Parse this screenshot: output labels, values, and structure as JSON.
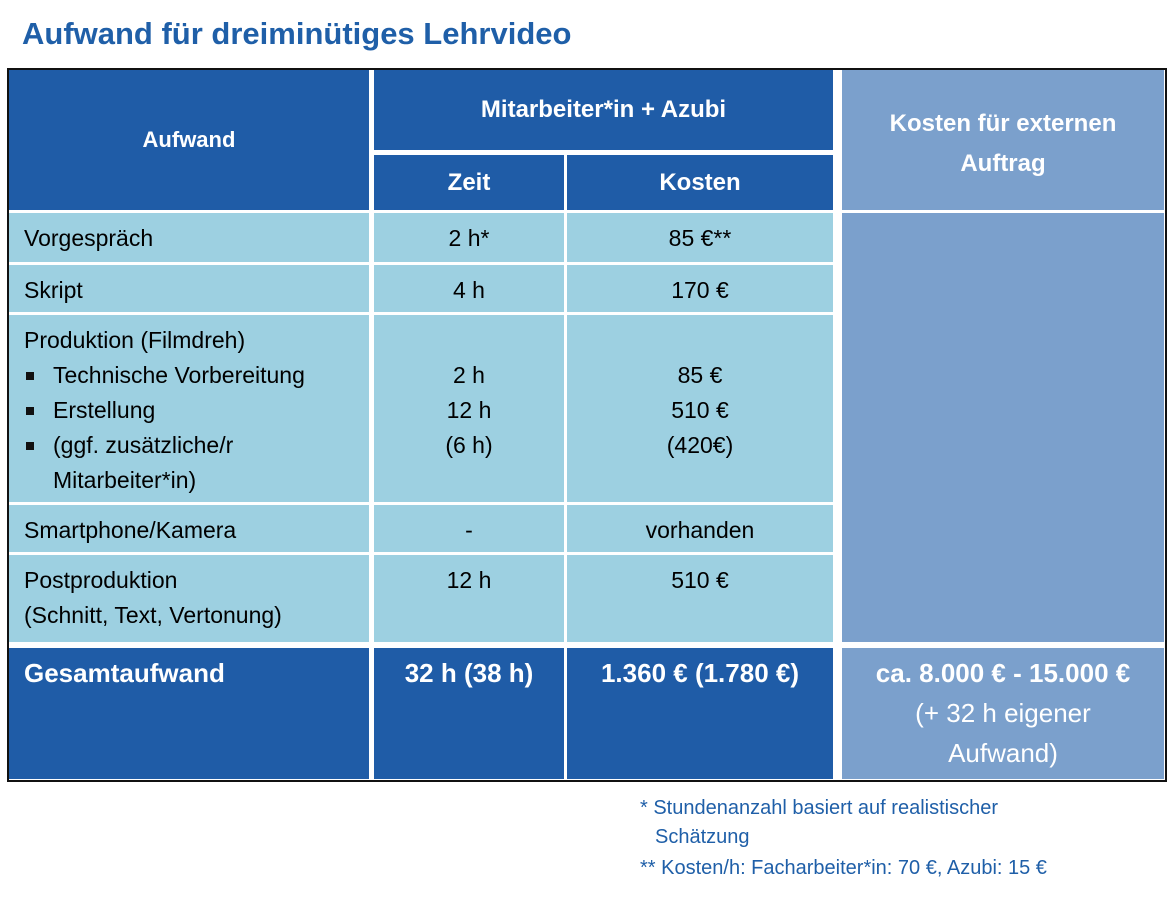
{
  "title": "Aufwand für dreiminütiges Lehrvideo",
  "table": {
    "header": {
      "aufwand": "Aufwand",
      "group": "Mitarbeiter*in + Azubi",
      "zeit": "Zeit",
      "kosten": "Kosten",
      "extern": [
        "Kosten für externen",
        "Auftrag"
      ]
    },
    "rows": [
      {
        "label": [
          "Vorgespräch"
        ],
        "zeit": [
          "2 h*"
        ],
        "kosten": [
          "85 €**"
        ]
      },
      {
        "label": [
          "Skript"
        ],
        "zeit": [
          "4 h"
        ],
        "kosten": [
          "170 €"
        ]
      },
      {
        "label": [
          "Produktion (Filmdreh)"
        ],
        "items": [
          [
            "Technische Vorbereitung"
          ],
          [
            "Erstellung"
          ],
          [
            "(ggf. zusätzliche/r",
            "Mitarbeiter*in)"
          ]
        ],
        "zeit": [
          "2 h",
          "12 h",
          "(6 h)"
        ],
        "kosten": [
          "85 €",
          "510 €",
          "(420€)"
        ]
      },
      {
        "label": [
          "Smartphone/Kamera"
        ],
        "zeit": [
          "-"
        ],
        "kosten": [
          "vorhanden"
        ]
      },
      {
        "label": [
          "Postproduktion",
          "(Schnitt, Text, Vertonung)"
        ],
        "zeit": [
          "12 h"
        ],
        "kosten": [
          "510 €"
        ]
      }
    ],
    "total": {
      "label": "Gesamtaufwand",
      "zeit": "32 h (38 h)",
      "kosten": "1.360 € (1.780 €)",
      "extern": [
        "ca. 8.000 € - 15.000 €",
        "(+ 32 h eigener",
        "Aufwand)"
      ]
    }
  },
  "footnotes": [
    "* Stundenanzahl basiert auf realistischer",
    "Schätzung",
    "** Kosten/h: Facharbeiter*in: 70 €, Azubi: 15 €"
  ]
}
